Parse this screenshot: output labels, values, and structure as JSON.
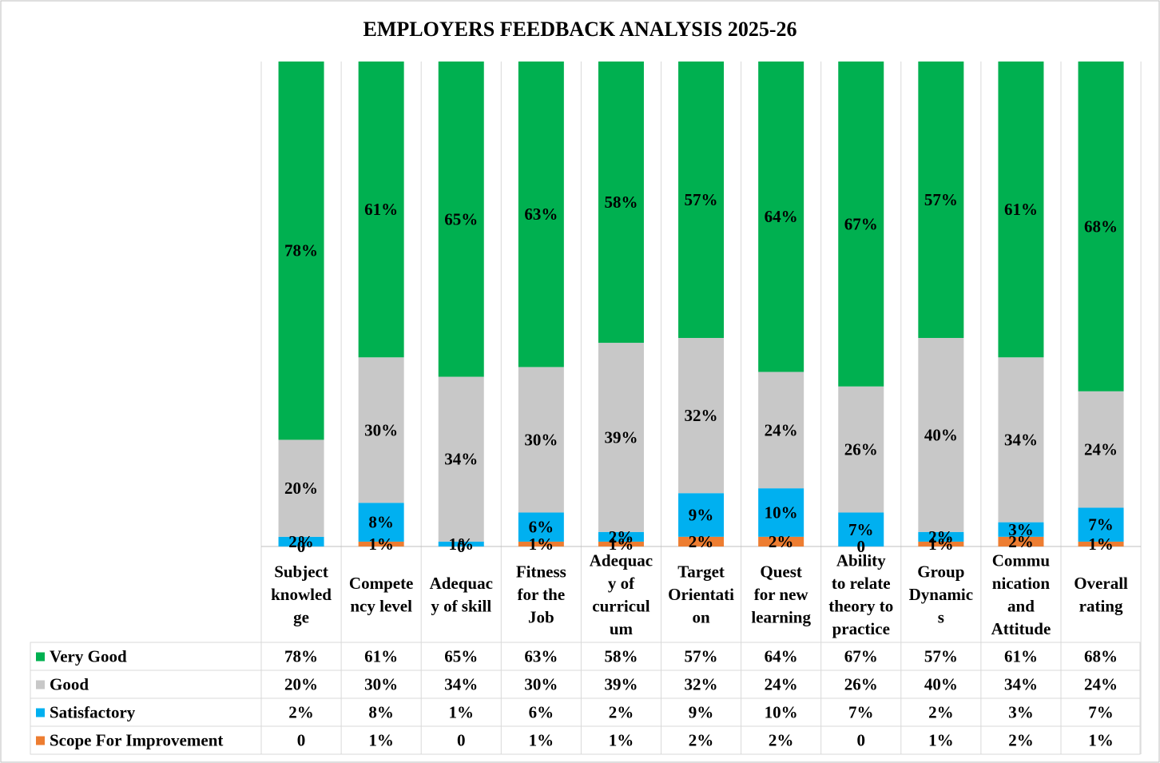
{
  "chart_data": {
    "type": "bar",
    "stacked": true,
    "title": "EMPLOYERS FEEDBACK ANALYSIS 2025-26",
    "categories": [
      [
        "Subject",
        "knowled",
        "ge"
      ],
      [
        "Compete",
        "ncy level"
      ],
      [
        "Adequac",
        "y of skill"
      ],
      [
        "Fitness",
        "for the",
        "Job"
      ],
      [
        "Adequac",
        "y of",
        "curricul",
        "um"
      ],
      [
        "Target",
        "Orientati",
        "on"
      ],
      [
        "Quest",
        "for new",
        "learning"
      ],
      [
        "Ability",
        "to relate",
        "theory to",
        "practice"
      ],
      [
        "Group",
        "Dynamic",
        "s"
      ],
      [
        "Commu",
        "nication",
        "and",
        "Attitude"
      ],
      [
        "Overall",
        "rating"
      ]
    ],
    "series": [
      {
        "name": "Very Good",
        "color": "#00B050",
        "values": [
          78,
          61,
          65,
          63,
          58,
          57,
          64,
          67,
          57,
          61,
          68
        ],
        "labels": [
          "78%",
          "61%",
          "65%",
          "63%",
          "58%",
          "57%",
          "64%",
          "67%",
          "57%",
          "61%",
          "68%"
        ]
      },
      {
        "name": "Good",
        "color": "#C8C8C8",
        "values": [
          20,
          30,
          34,
          30,
          39,
          32,
          24,
          26,
          40,
          34,
          24
        ],
        "labels": [
          "20%",
          "30%",
          "34%",
          "30%",
          "39%",
          "32%",
          "24%",
          "26%",
          "40%",
          "34%",
          "24%"
        ]
      },
      {
        "name": "Satisfactory",
        "color": "#00B0F0",
        "values": [
          2,
          8,
          1,
          6,
          2,
          9,
          10,
          7,
          2,
          3,
          7
        ],
        "labels": [
          "2%",
          "8%",
          "1%",
          "6%",
          "2%",
          "9%",
          "10%",
          "7%",
          "2%",
          "3%",
          "7%"
        ]
      },
      {
        "name": "Scope For Improvement",
        "color": "#ED7D31",
        "values": [
          0,
          1,
          0,
          1,
          1,
          2,
          2,
          0,
          1,
          2,
          1
        ],
        "labels": [
          "0",
          "1%",
          "0",
          "1%",
          "1%",
          "2%",
          "2%",
          "0",
          "1%",
          "2%",
          "1%"
        ]
      }
    ],
    "ylim": [
      0,
      100
    ],
    "grid": false,
    "legend": "data-table-below"
  }
}
